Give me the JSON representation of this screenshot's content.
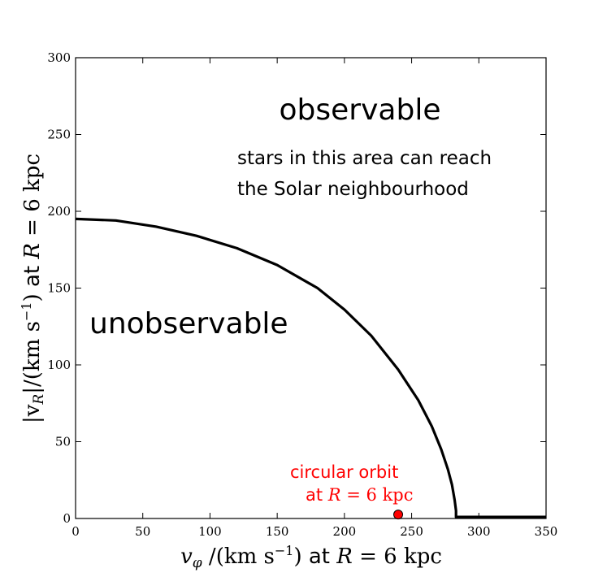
{
  "chart_data": {
    "type": "line",
    "xlim": [
      0,
      350
    ],
    "ylim": [
      0,
      300
    ],
    "xticks": [
      0,
      50,
      100,
      150,
      200,
      250,
      300,
      350
    ],
    "yticks": [
      0,
      50,
      100,
      150,
      200,
      250,
      300
    ],
    "xlabel": {
      "symbol": "v",
      "subscript": "φ",
      "unit": " /(km s",
      "exponent": "−1",
      "unit_close": ")",
      "at": " at ",
      "R": "R",
      "value": " = 6 kpc"
    },
    "ylabel": {
      "prefix": "|v",
      "subscript": "R",
      "unit": "|/(km s",
      "exponent": "−1",
      "unit_close": ")",
      "at": " at ",
      "R": "R",
      "value": " = 6 kpc"
    },
    "boundary_curve": {
      "color": "#000000",
      "x": [
        0,
        30,
        60,
        90,
        120,
        150,
        180,
        200,
        220,
        240,
        255,
        265,
        272,
        277,
        280,
        282,
        283,
        283,
        290,
        300,
        320,
        350
      ],
      "y": [
        195,
        194,
        190,
        184,
        176,
        165,
        150,
        136,
        119,
        97,
        77,
        60,
        45,
        32,
        22,
        12,
        5,
        1,
        1,
        1,
        1,
        1
      ]
    },
    "circular_orbit_point": {
      "x": 240,
      "y": 1,
      "color": "#ff0000"
    },
    "annotations": {
      "observable": "observable",
      "stars_line1": "stars in this area can reach",
      "stars_line2": "the Solar neighbourhood",
      "unobservable": "unobservable",
      "circular_orbit": "circular orbit",
      "circ_at": "at ",
      "circ_R": "R",
      "circ_value": " = 6 kpc"
    }
  }
}
